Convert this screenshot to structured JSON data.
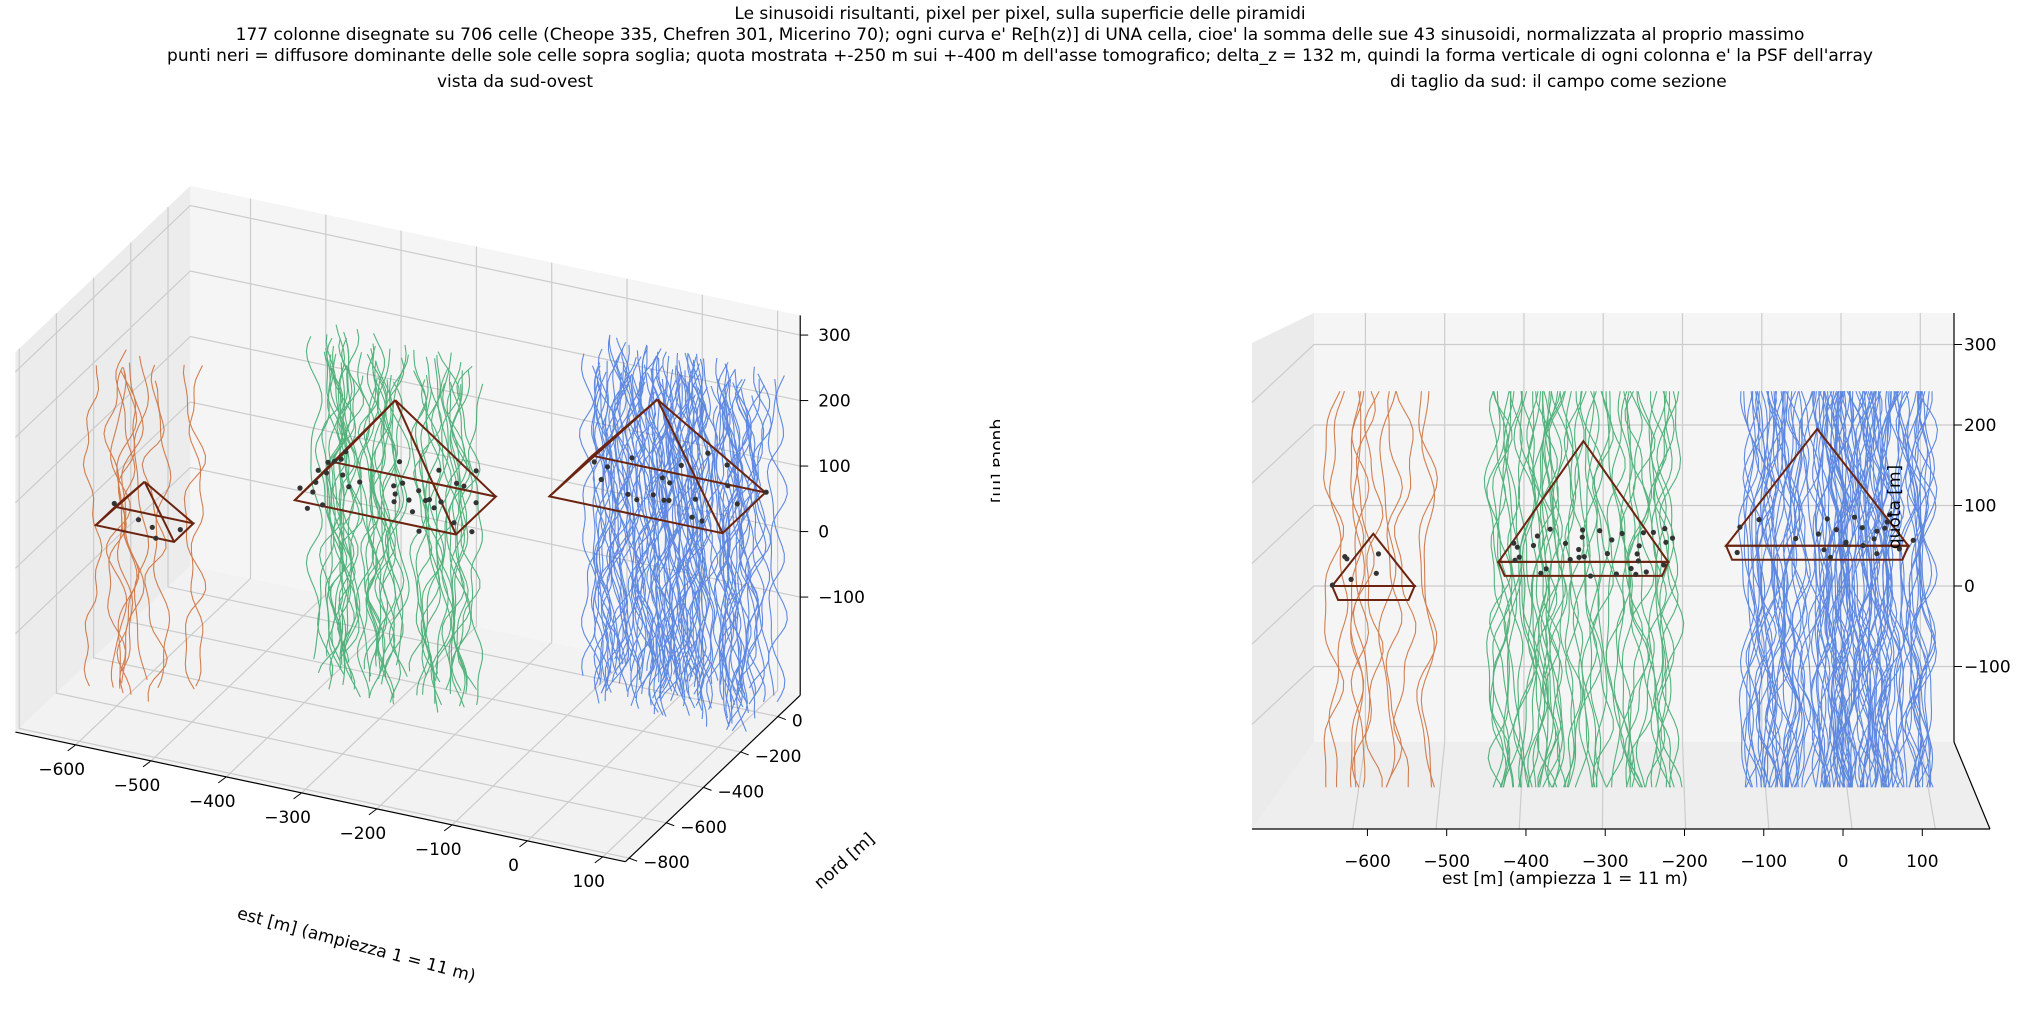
{
  "figure": {
    "title_lines": [
      "Le sinusoidi risultanti, pixel per pixel, sulla superficie delle piramidi",
      "177 colonne disegnate su 706 celle (Cheope 335, Chefren 301, Micerino 70); ogni curva e' Re[h(z)] di UNA cella, cioe' la somma delle sue 43 sinusoidi, normalizzata al proprio massimo",
      "punti neri = diffusore dominante delle sole celle sopra soglia; quota mostrata +-250 m sui +-400 m dell'asse tomografico; delta_z = 132 m, quindi la forma verticale di ogni colonna e' la PSF dell'array"
    ]
  },
  "colors": {
    "micerino": "#c8632a",
    "chefren": "#2ca25f",
    "cheope": "#3a6fdc",
    "pyramid_edges": "#6b2410",
    "scatter_points": "#333333"
  },
  "chart_data": [
    {
      "type": "line",
      "view": "3d",
      "title": "vista da sud-ovest",
      "xlabel": "est [m]  (ampiezza 1 = 11 m)",
      "ylabel": "nord [m]",
      "zlabel": "quota [m]",
      "xlim": [
        -680,
        130
      ],
      "ylim": [
        -820,
        120
      ],
      "zlim": [
        -250,
        330
      ],
      "xticks": [
        -600,
        -500,
        -400,
        -300,
        -200,
        -100,
        0,
        100
      ],
      "yticks": [
        -800,
        -600,
        -400,
        -200,
        0
      ],
      "zticks": [
        -100,
        0,
        100,
        200,
        300
      ],
      "series": [
        {
          "group": "Micerino",
          "color": "micerino",
          "columns": 12,
          "x_range": [
            -660,
            -520
          ],
          "y_range": [
            -560,
            -420
          ],
          "z_range": [
            -250,
            250
          ]
        },
        {
          "group": "Chefren",
          "color": "chefren",
          "columns": 55,
          "x_range": [
            -440,
            -210
          ],
          "y_range": [
            -330,
            -100
          ],
          "z_range": [
            -250,
            250
          ]
        },
        {
          "group": "Cheope",
          "color": "cheope",
          "columns": 110,
          "x_range": [
            -120,
            110
          ],
          "y_range": [
            -120,
            110
          ],
          "z_range": [
            -250,
            250
          ]
        }
      ],
      "pyramids": [
        {
          "name": "Micerino",
          "center": [
            -590,
            -490
          ],
          "half_base": 52,
          "base_z": 0,
          "apex_z": 65
        },
        {
          "name": "Chefren",
          "center": [
            -325,
            -215
          ],
          "half_base": 107,
          "base_z": 30,
          "apex_z": 180
        },
        {
          "name": "Cheope",
          "center": [
            -30,
            0
          ],
          "half_base": 115,
          "base_z": 50,
          "apex_z": 195
        }
      ]
    },
    {
      "type": "line",
      "view": "3d-from-south",
      "title": "di taglio da sud: il campo come sezione",
      "xlabel": "est [m]  (ampiezza 1 = 11 m)",
      "ylabel": "",
      "zlabel": "quota [m]",
      "xlim": [
        -680,
        140
      ],
      "zlim": [
        -250,
        330
      ],
      "xticks": [
        -600,
        -500,
        -400,
        -300,
        -200,
        -100,
        0,
        100
      ],
      "zticks": [
        -100,
        0,
        100,
        200,
        300
      ],
      "series": [
        {
          "group": "Micerino",
          "color": "micerino"
        },
        {
          "group": "Chefren",
          "color": "chefren"
        },
        {
          "group": "Cheope",
          "color": "cheope"
        }
      ]
    }
  ]
}
